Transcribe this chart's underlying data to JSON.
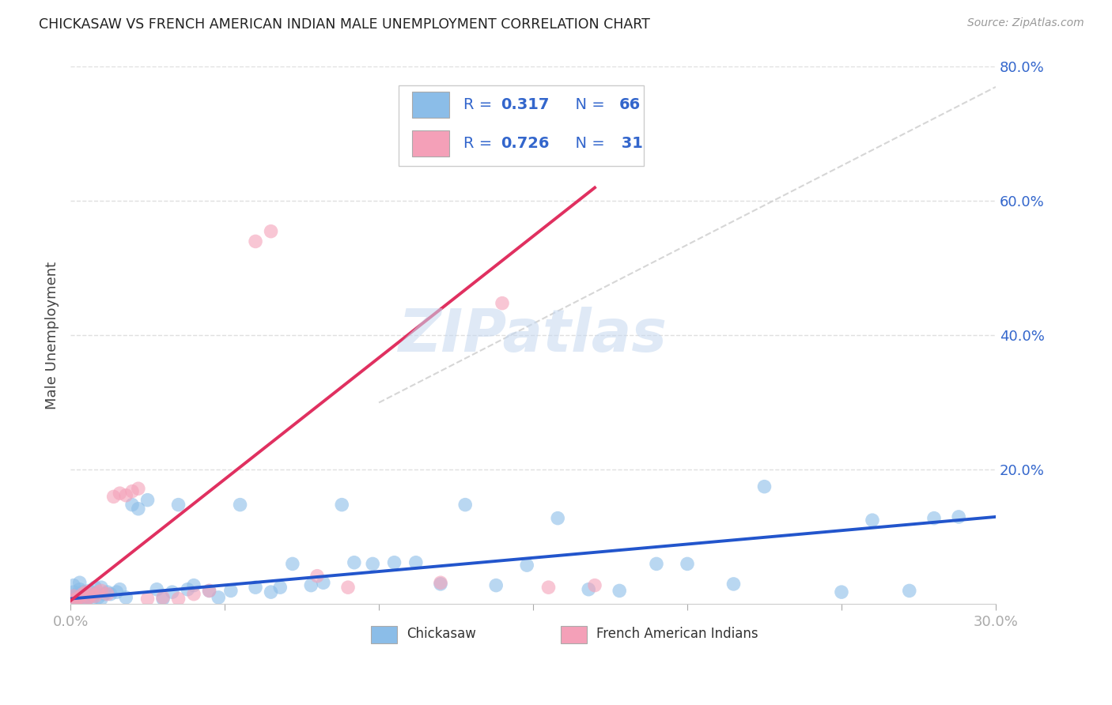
{
  "title": "CHICKASAW VS FRENCH AMERICAN INDIAN MALE UNEMPLOYMENT CORRELATION CHART",
  "source": "Source: ZipAtlas.com",
  "ylabel": "Male Unemployment",
  "chickasaw_color": "#8BBDE8",
  "french_color": "#F4A0B8",
  "chickasaw_line_color": "#2255CC",
  "french_line_color": "#E03060",
  "ref_line_color": "#CCCCCC",
  "grid_color": "#E0E0E0",
  "text_color": "#3366CC",
  "label_color": "#333333",
  "legend_r1": "0.317",
  "legend_n1": "66",
  "legend_r2": "0.726",
  "legend_n2": "31",
  "watermark_text": "ZIPatlas",
  "x_lim": [
    0.0,
    0.3
  ],
  "y_lim": [
    0.0,
    0.8
  ],
  "chick_line_x0": 0.0,
  "chick_line_y0": 0.008,
  "chick_line_x1": 0.3,
  "chick_line_y1": 0.13,
  "french_line_x0": 0.0,
  "french_line_y0": 0.005,
  "french_line_x1": 0.17,
  "french_line_y1": 0.62,
  "ref_line_x0": 0.1,
  "ref_line_y0": 0.3,
  "ref_line_x1": 0.3,
  "ref_line_y1": 0.77,
  "chickasaw_x": [
    0.001,
    0.001,
    0.001,
    0.002,
    0.002,
    0.003,
    0.003,
    0.003,
    0.004,
    0.004,
    0.005,
    0.005,
    0.006,
    0.006,
    0.007,
    0.008,
    0.008,
    0.009,
    0.01,
    0.01,
    0.011,
    0.012,
    0.013,
    0.015,
    0.016,
    0.018,
    0.02,
    0.022,
    0.025,
    0.028,
    0.03,
    0.033,
    0.035,
    0.038,
    0.04,
    0.045,
    0.048,
    0.052,
    0.055,
    0.06,
    0.065,
    0.068,
    0.072,
    0.078,
    0.082,
    0.088,
    0.092,
    0.098,
    0.105,
    0.112,
    0.12,
    0.128,
    0.138,
    0.148,
    0.158,
    0.168,
    0.178,
    0.19,
    0.2,
    0.215,
    0.225,
    0.25,
    0.26,
    0.272,
    0.28,
    0.288
  ],
  "chickasaw_y": [
    0.008,
    0.018,
    0.028,
    0.005,
    0.014,
    0.01,
    0.022,
    0.032,
    0.008,
    0.018,
    0.006,
    0.015,
    0.02,
    0.01,
    0.008,
    0.016,
    0.025,
    0.01,
    0.008,
    0.025,
    0.015,
    0.018,
    0.015,
    0.018,
    0.022,
    0.01,
    0.148,
    0.142,
    0.155,
    0.022,
    0.008,
    0.018,
    0.148,
    0.022,
    0.028,
    0.02,
    0.01,
    0.02,
    0.148,
    0.025,
    0.018,
    0.025,
    0.06,
    0.028,
    0.032,
    0.148,
    0.062,
    0.06,
    0.062,
    0.062,
    0.03,
    0.148,
    0.028,
    0.058,
    0.128,
    0.022,
    0.02,
    0.06,
    0.06,
    0.03,
    0.175,
    0.018,
    0.125,
    0.02,
    0.128,
    0.13
  ],
  "french_x": [
    0.001,
    0.001,
    0.002,
    0.003,
    0.004,
    0.005,
    0.005,
    0.006,
    0.007,
    0.008,
    0.009,
    0.01,
    0.012,
    0.014,
    0.016,
    0.018,
    0.02,
    0.022,
    0.025,
    0.03,
    0.035,
    0.04,
    0.045,
    0.06,
    0.065,
    0.08,
    0.09,
    0.12,
    0.14,
    0.155,
    0.17
  ],
  "french_y": [
    0.005,
    0.012,
    0.008,
    0.01,
    0.015,
    0.006,
    0.018,
    0.01,
    0.015,
    0.012,
    0.018,
    0.02,
    0.015,
    0.16,
    0.165,
    0.162,
    0.168,
    0.172,
    0.008,
    0.01,
    0.008,
    0.015,
    0.02,
    0.54,
    0.555,
    0.042,
    0.025,
    0.032,
    0.448,
    0.025,
    0.028
  ]
}
